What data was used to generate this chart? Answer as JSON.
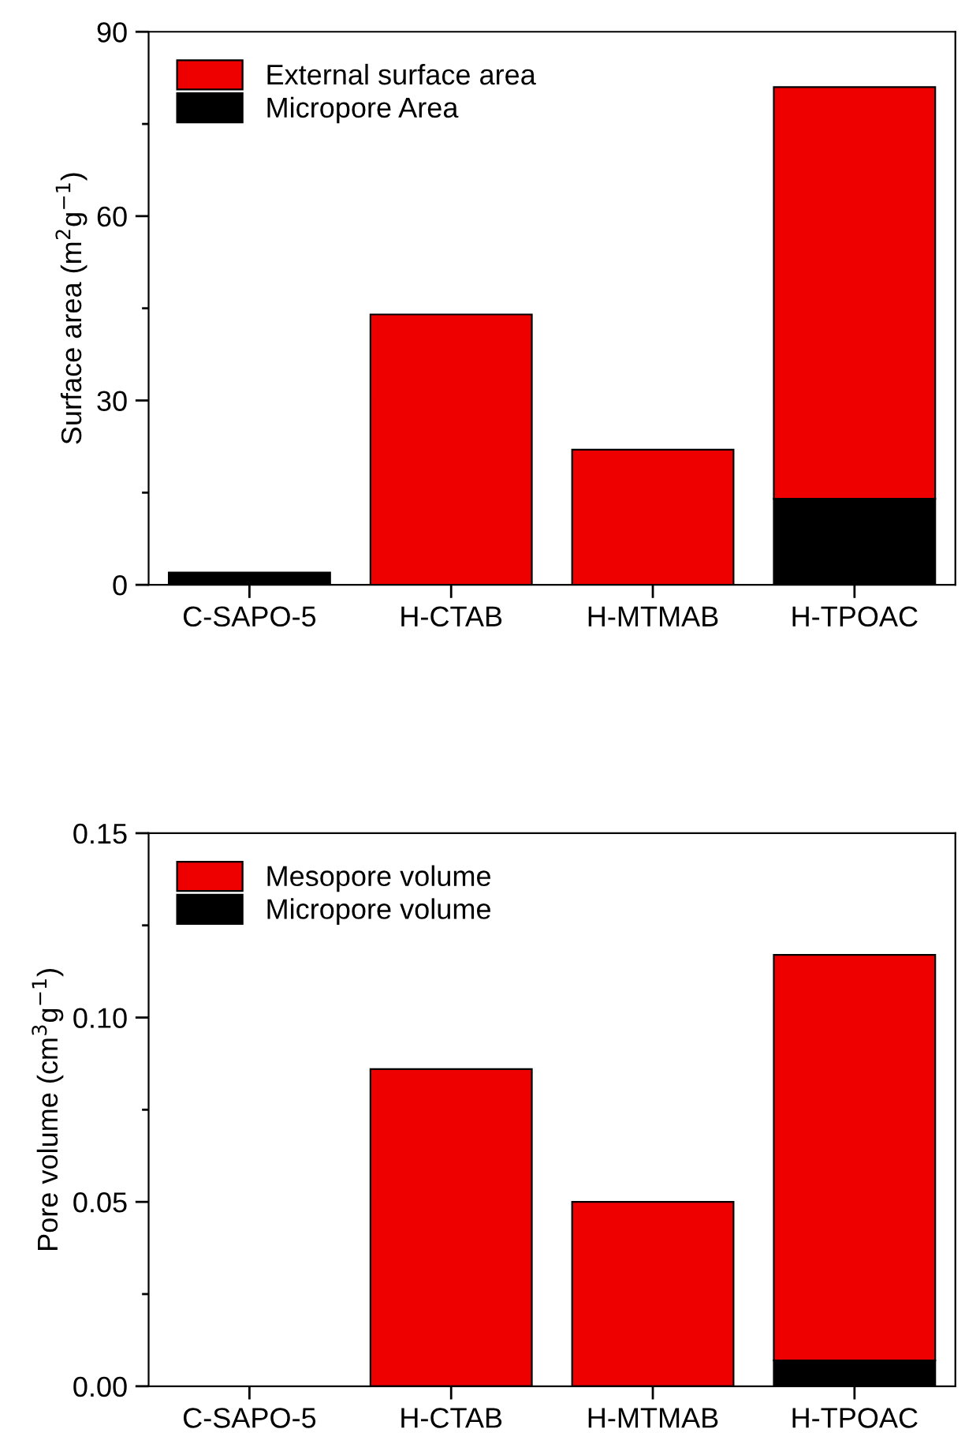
{
  "chart_data": [
    {
      "type": "bar",
      "stacked": true,
      "ylabel": "Surface area (m$^{2}$g$^{−1}$)",
      "categories": [
        "C-SAPO-5",
        "H-CTAB",
        "H-MTMAB",
        "H-TPOAC"
      ],
      "ylim": [
        0,
        90
      ],
      "yticks": [
        0,
        30,
        60,
        90
      ],
      "legend": "top left",
      "grid": false,
      "series": [
        {
          "name": "Micropore Area",
          "color": "#000000",
          "values": [
            2,
            null,
            null,
            14
          ]
        },
        {
          "name": "External surface area",
          "color": "#ee0000",
          "values": [
            null,
            44,
            22,
            67
          ]
        }
      ]
    },
    {
      "type": "bar",
      "stacked": true,
      "ylabel": "Pore volume (cm$^{3}$g$^{−1}$)",
      "categories": [
        "C-SAPO-5",
        "H-CTAB",
        "H-MTMAB",
        "H-TPOAC"
      ],
      "ylim": [
        0,
        0.15
      ],
      "yticks": [
        {
          "value": 0,
          "label": "0.00"
        },
        {
          "value": 0.05,
          "label": "0.05"
        },
        {
          "value": 0.1,
          "label": "0.10"
        },
        {
          "value": 0.15,
          "label": "0.15"
        }
      ],
      "legend": "top left",
      "grid": false,
      "series": [
        {
          "name": "Micropore volume",
          "color": "#000000",
          "values": [
            null,
            null,
            null,
            0.007
          ]
        },
        {
          "name": "Mesopore volume",
          "color": "#ee0000",
          "values": [
            null,
            0.086,
            0.05,
            0.11
          ]
        }
      ]
    }
  ]
}
